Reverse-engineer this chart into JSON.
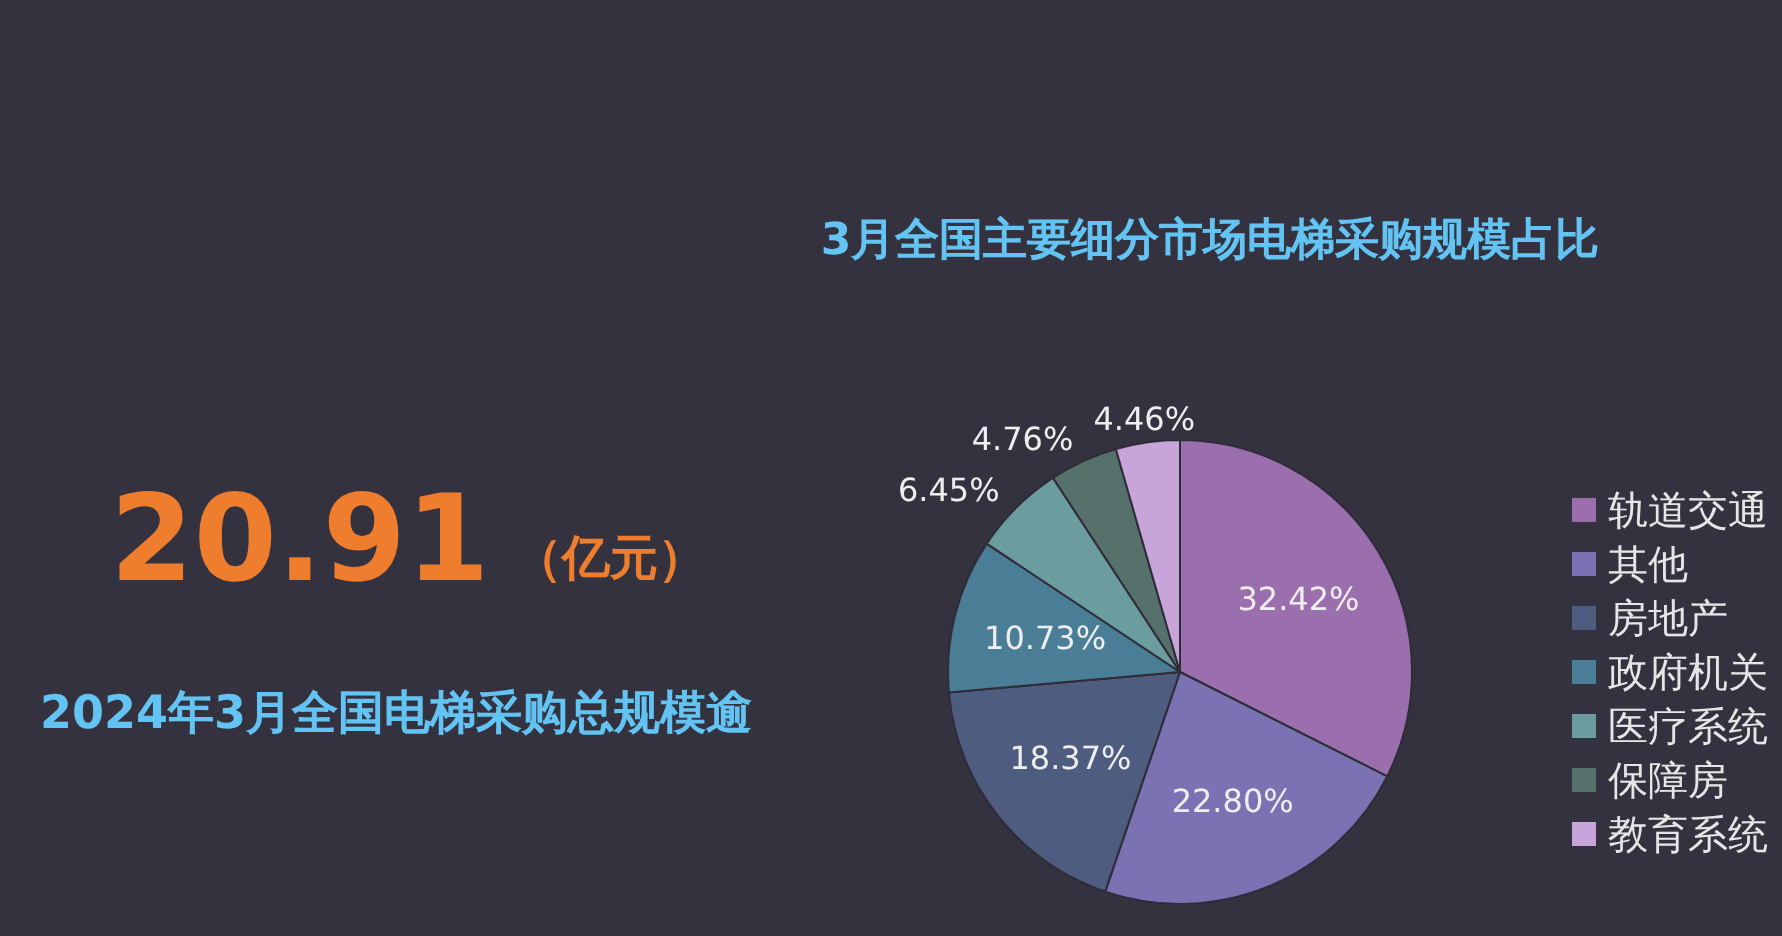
{
  "chart_data": {
    "type": "pie",
    "title": "3月全国主要细分市场电梯采购规模占比",
    "annotations": [
      "20.91",
      "（亿元）",
      "2024年3月全国电梯采购总规模逾"
    ],
    "categories": [
      "轨道交通",
      "其他",
      "房地产",
      "政府机关",
      "医疗系统",
      "保障房",
      "教育系统"
    ],
    "values": [
      32.42,
      22.8,
      18.37,
      10.73,
      6.45,
      4.76,
      4.46
    ],
    "colors": [
      "#9b6fae",
      "#7a72b2",
      "#4e5c80",
      "#4a7d96",
      "#6b9c9e",
      "#56706b",
      "#c7a5d8"
    ],
    "value_labels": [
      "32.42%",
      "22.80%",
      "18.37%",
      "10.73%",
      "6.45%",
      "4.76%",
      "4.46%"
    ],
    "legend": "right"
  }
}
